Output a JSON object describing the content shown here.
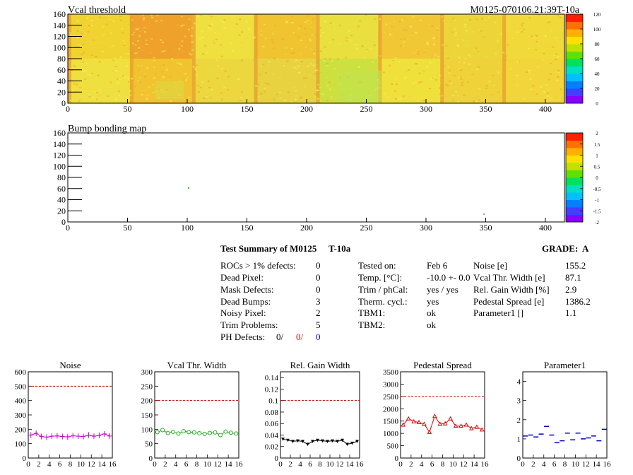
{
  "top_map": {
    "title": "Vcal threshold",
    "module_id": "M0125-070106.21:39T-10a",
    "y_ticks": [
      "0",
      "20",
      "40",
      "60",
      "80",
      "100",
      "120",
      "140",
      "160"
    ],
    "x_ticks": [
      "0",
      "50",
      "100",
      "150",
      "200",
      "250",
      "300",
      "350",
      "400"
    ],
    "z_ticks": [
      "0",
      "20",
      "40",
      "60",
      "80",
      "100",
      "120"
    ]
  },
  "bump_map": {
    "title": "Bump bonding map",
    "y_ticks": [
      "0",
      "20",
      "40",
      "60",
      "80",
      "100",
      "120",
      "140",
      "160"
    ],
    "x_ticks": [
      "0",
      "50",
      "100",
      "150",
      "200",
      "250",
      "300",
      "350",
      "400"
    ],
    "z_ticks": [
      "-2",
      "-1.5",
      "-1",
      "-0.5",
      "0",
      "0.5",
      "1",
      "1.5",
      "2"
    ]
  },
  "summary": {
    "title": "Test Summary of M0125",
    "temp_tag": "T-10a",
    "grade_label": "GRADE:",
    "grade": "A",
    "left_labels": [
      "ROCs > 1% defects:",
      "Dead Pixel:",
      "Mask Defects:",
      "Dead Bumps:",
      "Noisy Pixel:",
      "Trim Problems:"
    ],
    "left_values": [
      "0",
      "0",
      "0",
      "3",
      "2",
      "5"
    ],
    "ph_label": "PH Defects:",
    "ph_values": [
      "0/",
      "0/",
      "0"
    ],
    "mid_labels": [
      "Tested on:",
      "Temp. [°C]:",
      "Trim / phCal:",
      "Therm. cycl.:",
      "TBM1:",
      "TBM2:"
    ],
    "mid_values": [
      "Feb 6",
      "-10.0 +- 0.0",
      "yes / yes",
      "yes",
      "ok",
      "ok"
    ],
    "right_labels": [
      "Noise [e]",
      "Vcal Thr. Width [e]",
      "Rel. Gain Width [%]",
      "Pedestal Spread [e]",
      "Parameter1 []"
    ],
    "right_values": [
      "155.2",
      "87.1",
      "2.9",
      "1386.2",
      "1.1"
    ]
  },
  "chart_data": [
    {
      "type": "line",
      "title": "Noise",
      "color": "#cc00cc",
      "marker": "plus",
      "x": [
        0,
        1,
        2,
        3,
        4,
        5,
        6,
        7,
        8,
        9,
        10,
        11,
        12,
        13,
        14,
        15
      ],
      "values": [
        160,
        172,
        150,
        145,
        152,
        154,
        150,
        147,
        155,
        152,
        150,
        160,
        152,
        158,
        168,
        153
      ],
      "ylim": [
        0,
        600
      ],
      "limit": 500,
      "y_ticks": [
        "0",
        "100",
        "200",
        "300",
        "400",
        "500",
        "600"
      ],
      "x_ticks": [
        "0",
        "2",
        "4",
        "6",
        "8",
        "10",
        "12",
        "14",
        "16"
      ]
    },
    {
      "type": "line",
      "title": "Vcal Thr. Width",
      "color": "#22aa22",
      "marker": "circle",
      "x": [
        0,
        1,
        2,
        3,
        4,
        5,
        6,
        7,
        8,
        9,
        10,
        11,
        12,
        13,
        14,
        15
      ],
      "values": [
        90,
        97,
        87,
        91,
        85,
        93,
        90,
        89,
        86,
        84,
        87,
        89,
        80,
        92,
        88,
        85
      ],
      "ylim": [
        0,
        300
      ],
      "limit": 200,
      "y_ticks": [
        "0",
        "50",
        "100",
        "150",
        "200",
        "250",
        "300"
      ],
      "x_ticks": [
        "0",
        "2",
        "4",
        "6",
        "8",
        "10",
        "12",
        "14",
        "16"
      ]
    },
    {
      "type": "line",
      "title": "Rel. Gain Width",
      "color": "#000000",
      "marker": "triangle-down",
      "x": [
        0,
        1,
        2,
        3,
        4,
        5,
        6,
        7,
        8,
        9,
        10,
        11,
        12,
        13,
        14,
        15
      ],
      "values": [
        0.033,
        0.031,
        0.029,
        0.03,
        0.029,
        0.024,
        0.029,
        0.031,
        0.03,
        0.029,
        0.03,
        0.029,
        0.031,
        0.024,
        0.026,
        0.029
      ],
      "ylim": [
        0,
        0.15
      ],
      "limit": 0.1,
      "y_ticks": [
        "0",
        "0.02",
        "0.04",
        "0.06",
        "0.08",
        "0.1",
        "0.12",
        "0.14"
      ],
      "x_ticks": [
        "0",
        "2",
        "4",
        "6",
        "8",
        "10",
        "12",
        "14",
        "16"
      ]
    },
    {
      "type": "line",
      "title": "Pedestal Spread",
      "color": "#dd0000",
      "marker": "triangle-up",
      "x": [
        0,
        1,
        2,
        3,
        4,
        5,
        6,
        7,
        8,
        9,
        10,
        11,
        12,
        13,
        14,
        15
      ],
      "values": [
        1350,
        1600,
        1480,
        1450,
        1380,
        1050,
        1700,
        1380,
        1400,
        1600,
        1300,
        1300,
        1350,
        1200,
        1260,
        1150
      ],
      "ylim": [
        0,
        3500
      ],
      "limit": 2500,
      "y_ticks": [
        "0",
        "500",
        "1000",
        "1500",
        "2000",
        "2500",
        "3000",
        "3500"
      ],
      "x_ticks": [
        "0",
        "2",
        "4",
        "6",
        "8",
        "10",
        "12",
        "14",
        "16"
      ]
    },
    {
      "type": "scatter",
      "title": "Parameter1",
      "color": "#0000cc",
      "marker": "hbar",
      "x": [
        0,
        1,
        2,
        3,
        4,
        5,
        6,
        7,
        8,
        9,
        10,
        11,
        12,
        13,
        14,
        15
      ],
      "values": [
        1.15,
        1.2,
        1.1,
        1.25,
        1.65,
        1.2,
        0.8,
        0.9,
        1.3,
        0.95,
        1.3,
        1.0,
        1.05,
        1.15,
        0.9,
        1.5
      ],
      "ylim": [
        0,
        4.5
      ],
      "limit": null,
      "y_ticks": [
        "0",
        "1",
        "2",
        "3",
        "4"
      ],
      "x_ticks": [
        "0",
        "2",
        "4",
        "6",
        "8",
        "10",
        "12",
        "14",
        "16"
      ]
    }
  ]
}
